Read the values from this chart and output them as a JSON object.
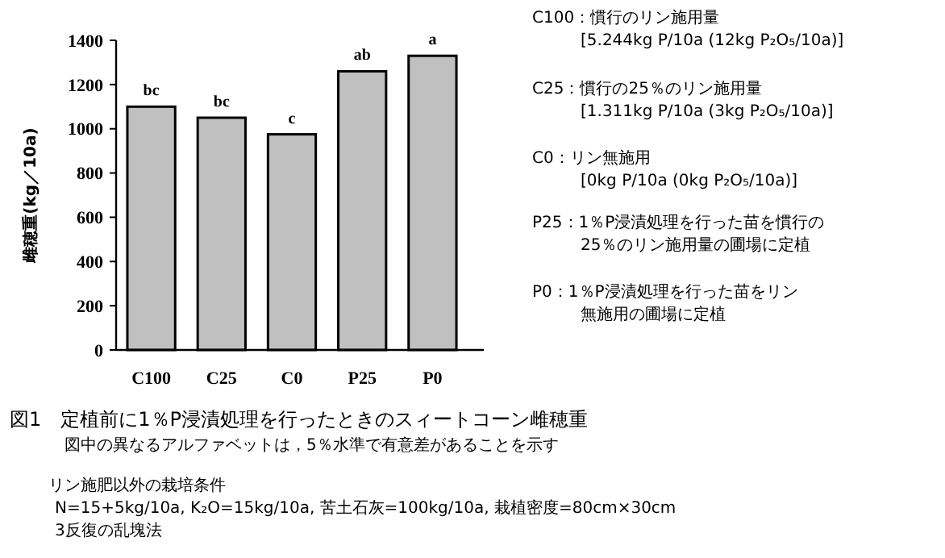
{
  "chart_data": {
    "type": "bar",
    "title": "図1　定植前に1％P浸漬処理を行ったときのスィートコーン雌穂重",
    "subtitle": "図中の異なるアルファベットは，5％水準で有意差があることを示す",
    "ylabel": "雌穂重(kg／10a)",
    "categories": [
      "C100",
      "C25",
      "C0",
      "P25",
      "P0"
    ],
    "values": [
      1100,
      1050,
      975,
      1260,
      1330
    ],
    "color": "#c0c0c0",
    "ylim": [
      0,
      1400
    ],
    "yticks": [
      0,
      200,
      400,
      600,
      800,
      1000,
      1200,
      1400
    ],
    "grid": false,
    "annotations": [
      {
        "text": "bc",
        "x": "C100",
        "y": 1100
      },
      {
        "text": "bc",
        "x": "C25",
        "y": 1050
      },
      {
        "text": "c",
        "x": "C0",
        "y": 975
      },
      {
        "text": "ab",
        "x": "P25",
        "y": 1260
      },
      {
        "text": "a",
        "x": "P0",
        "y": 1330
      },
      "C100：慣行のリン施用量",
      "[5.244kg P/10a (12kg P₂O₅/10a)]",
      "C25：慣行の25％のリン施用量",
      "[1.311kg P/10a (3kg P₂O₅/10a)]",
      "C0：リン無施用",
      "[0kg P/10a (0kg P₂O₅/10a)]",
      "P25：1％P浸漬処理を行った苗を慣行の",
      "25％のリン施用量の圃場に定植",
      "P0：1％P浸漬処理を行った苗をリン",
      "無施用の圃場に定植",
      "リン施肥以外の栽培条件",
      "N=15+5kg/10a, K₂O=15kg/10a, 苦土石灰=100kg/10a, 栽植密度=80cm×30cm",
      "3反復の乱塊法"
    ]
  }
}
